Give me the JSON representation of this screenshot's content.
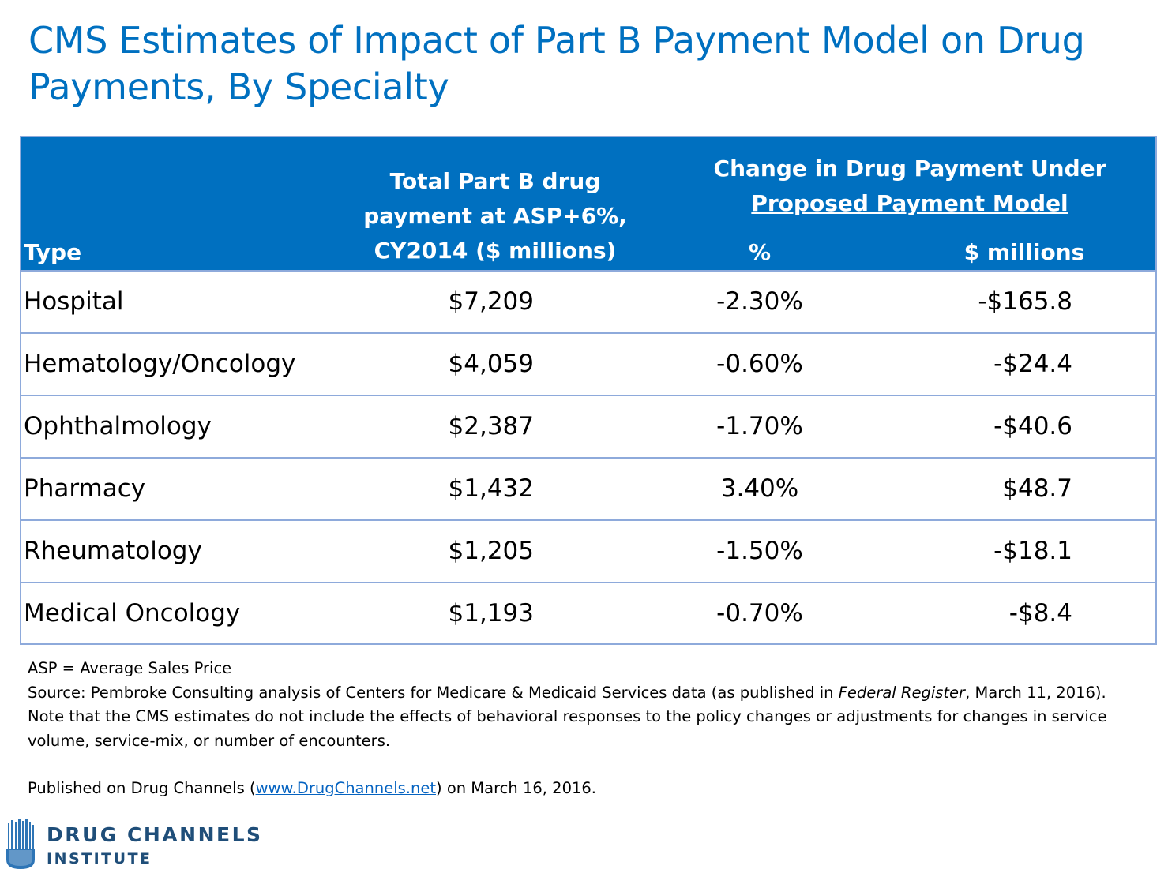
{
  "title": "CMS Estimates of Impact of Part B Payment Model on Drug Payments, By Specialty",
  "table": {
    "headers": {
      "type": "Type",
      "total_line1": "Total Part B drug",
      "total_line2": "payment at ASP+6%,",
      "total_line3": "CY2014 ($ millions)",
      "change_line1": "Change in Drug Payment Under",
      "change_line2": "Proposed Payment Model",
      "pct": "%",
      "millions": "$ millions"
    },
    "rows": [
      {
        "type": "Hospital",
        "total": "$7,209",
        "pct": "-2.30%",
        "millions": "-$165.8"
      },
      {
        "type": "Hematology/Oncology",
        "total": "$4,059",
        "pct": "-0.60%",
        "millions": "-$24.4"
      },
      {
        "type": "Ophthalmology",
        "total": "$2,387",
        "pct": "-1.70%",
        "millions": "-$40.6"
      },
      {
        "type": "Pharmacy",
        "total": "$1,432",
        "pct": "3.40%",
        "millions": "$48.7"
      },
      {
        "type": "Rheumatology",
        "total": "$1,205",
        "pct": "-1.50%",
        "millions": "-$18.1"
      },
      {
        "type": "Medical Oncology",
        "total": "$1,193",
        "pct": "-0.70%",
        "millions": "-$8.4"
      }
    ]
  },
  "notes": {
    "asp": "ASP = Average Sales Price",
    "source_pre": "Source: Pembroke Consulting analysis of Centers for Medicare & Medicaid Services data (as published in ",
    "source_italic": "Federal Register",
    "source_post": ", March 11, 2016).",
    "note": "Note that the CMS estimates do not include the effects of behavioral responses to the policy changes or adjustments for changes in service volume, service-mix, or number of encounters.",
    "published_pre": "Published on Drug Channels (",
    "published_link": "www.DrugChannels.net",
    "published_post": ") on March 16, 2016."
  },
  "logo": {
    "line1": "DRUG CHANNELS",
    "line2": "INSTITUTE",
    "icon": "test-tube-barcode-icon",
    "colors": {
      "dark": "#1f4e79",
      "light": "#2e75b6"
    }
  },
  "colors": {
    "title": "#0070c0",
    "header_bg": "#0070c0",
    "grid": "#8eaadb",
    "link": "#0563c1"
  }
}
